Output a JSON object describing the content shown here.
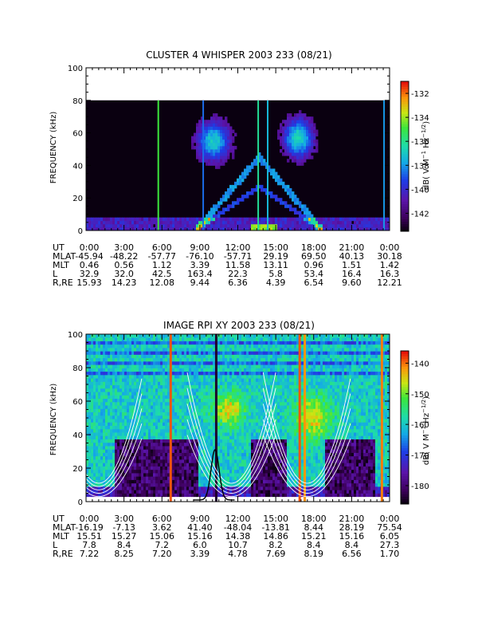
{
  "chart_data": [
    {
      "type": "heatmap",
      "title": "CLUSTER 4 WHISPER 2003 233 (08/21)",
      "ylabel": "FREQUENCY (kHz)",
      "ylim": [
        0,
        100
      ],
      "yticks": [
        "0",
        "20",
        "40",
        "60",
        "80",
        "100"
      ],
      "data_max_freq_khz": 80,
      "xlim_hours": [
        0,
        24
      ],
      "colorbar": {
        "label": "dB( V M⁻¹ Hz⁻¹ᐟ²)",
        "label_parts": [
          "dB( V M",
          "−1",
          " Hz",
          "−1/2",
          ")"
        ],
        "ticks": [
          "-132",
          "-134",
          "-136",
          "-138",
          "-140",
          "-142"
        ],
        "range": [
          -143.5,
          -131
        ],
        "tick_values": [
          -132,
          -134,
          -136,
          -138,
          -140,
          -142
        ]
      },
      "ephemeris": {
        "rows": [
          {
            "label": "UT",
            "values": [
              "0:00",
              "3:00",
              "6:00",
              "9:00",
              "12:00",
              "15:00",
              "18:00",
              "21:00",
              "0:00"
            ]
          },
          {
            "label": "MLAT",
            "values": [
              "-45.94",
              "-48.22",
              "-57.77",
              "-76.10",
              "-57.71",
              "29.19",
              "69.50",
              "40.13",
              "30.18"
            ]
          },
          {
            "label": "MLT",
            "values": [
              "0.46",
              "0.56",
              "1.12",
              "3.39",
              "11.58",
              "13.11",
              "0.96",
              "1.51",
              "1.42"
            ]
          },
          {
            "label": "L",
            "values": [
              "32.9",
              "32.0",
              "42.5",
              "163.4",
              "22.3",
              "5.8",
              "53.4",
              "16.4",
              "16.3"
            ]
          },
          {
            "label": "R,RE",
            "values": [
              "15.93",
              "14.23",
              "12.08",
              "9.44",
              "6.36",
              "4.39",
              "6.54",
              "9.60",
              "12.21"
            ]
          }
        ]
      }
    },
    {
      "type": "heatmap",
      "title": "IMAGE RPI XY 2003 233 (08/21)",
      "ylabel": "FREQUENCY (kHz)",
      "ylim": [
        0,
        100
      ],
      "yticks": [
        "0",
        "20",
        "40",
        "60",
        "80",
        "100"
      ],
      "xlim_hours": [
        0,
        24
      ],
      "colorbar": {
        "label": "dB( V M⁻¹ Hz⁻¹ᐟ²)",
        "label_parts": [
          "dB( V M",
          "−1",
          " Hz",
          "−1/2",
          ")"
        ],
        "ticks": [
          "-140",
          "-150",
          "-160",
          "-170",
          "-180"
        ],
        "range": [
          -186,
          -136
        ],
        "tick_values": [
          -140,
          -150,
          -160,
          -170,
          -180
        ]
      },
      "ephemeris": {
        "rows": [
          {
            "label": "UT",
            "values": [
              "0:00",
              "3:00",
              "6:00",
              "9:00",
              "12:00",
              "15:00",
              "18:00",
              "21:00",
              "0:00"
            ]
          },
          {
            "label": "MLAT",
            "values": [
              "-16.19",
              "-7.13",
              "3.62",
              "41.40",
              "-48.04",
              "-13.81",
              "8.44",
              "28.19",
              "75.54"
            ]
          },
          {
            "label": "MLT",
            "values": [
              "15.51",
              "15.27",
              "15.06",
              "15.16",
              "14.38",
              "14.86",
              "15.21",
              "15.16",
              "6.05"
            ]
          },
          {
            "label": "L",
            "values": [
              "7.8",
              "8.4",
              "7.2",
              "6.0",
              "10.7",
              "8.2",
              "8.4",
              "8.4",
              "27.3"
            ]
          },
          {
            "label": "R,RE",
            "values": [
              "7.22",
              "8.25",
              "7.20",
              "3.39",
              "4.78",
              "7.69",
              "8.19",
              "6.56",
              "1.70"
            ]
          }
        ]
      }
    }
  ]
}
